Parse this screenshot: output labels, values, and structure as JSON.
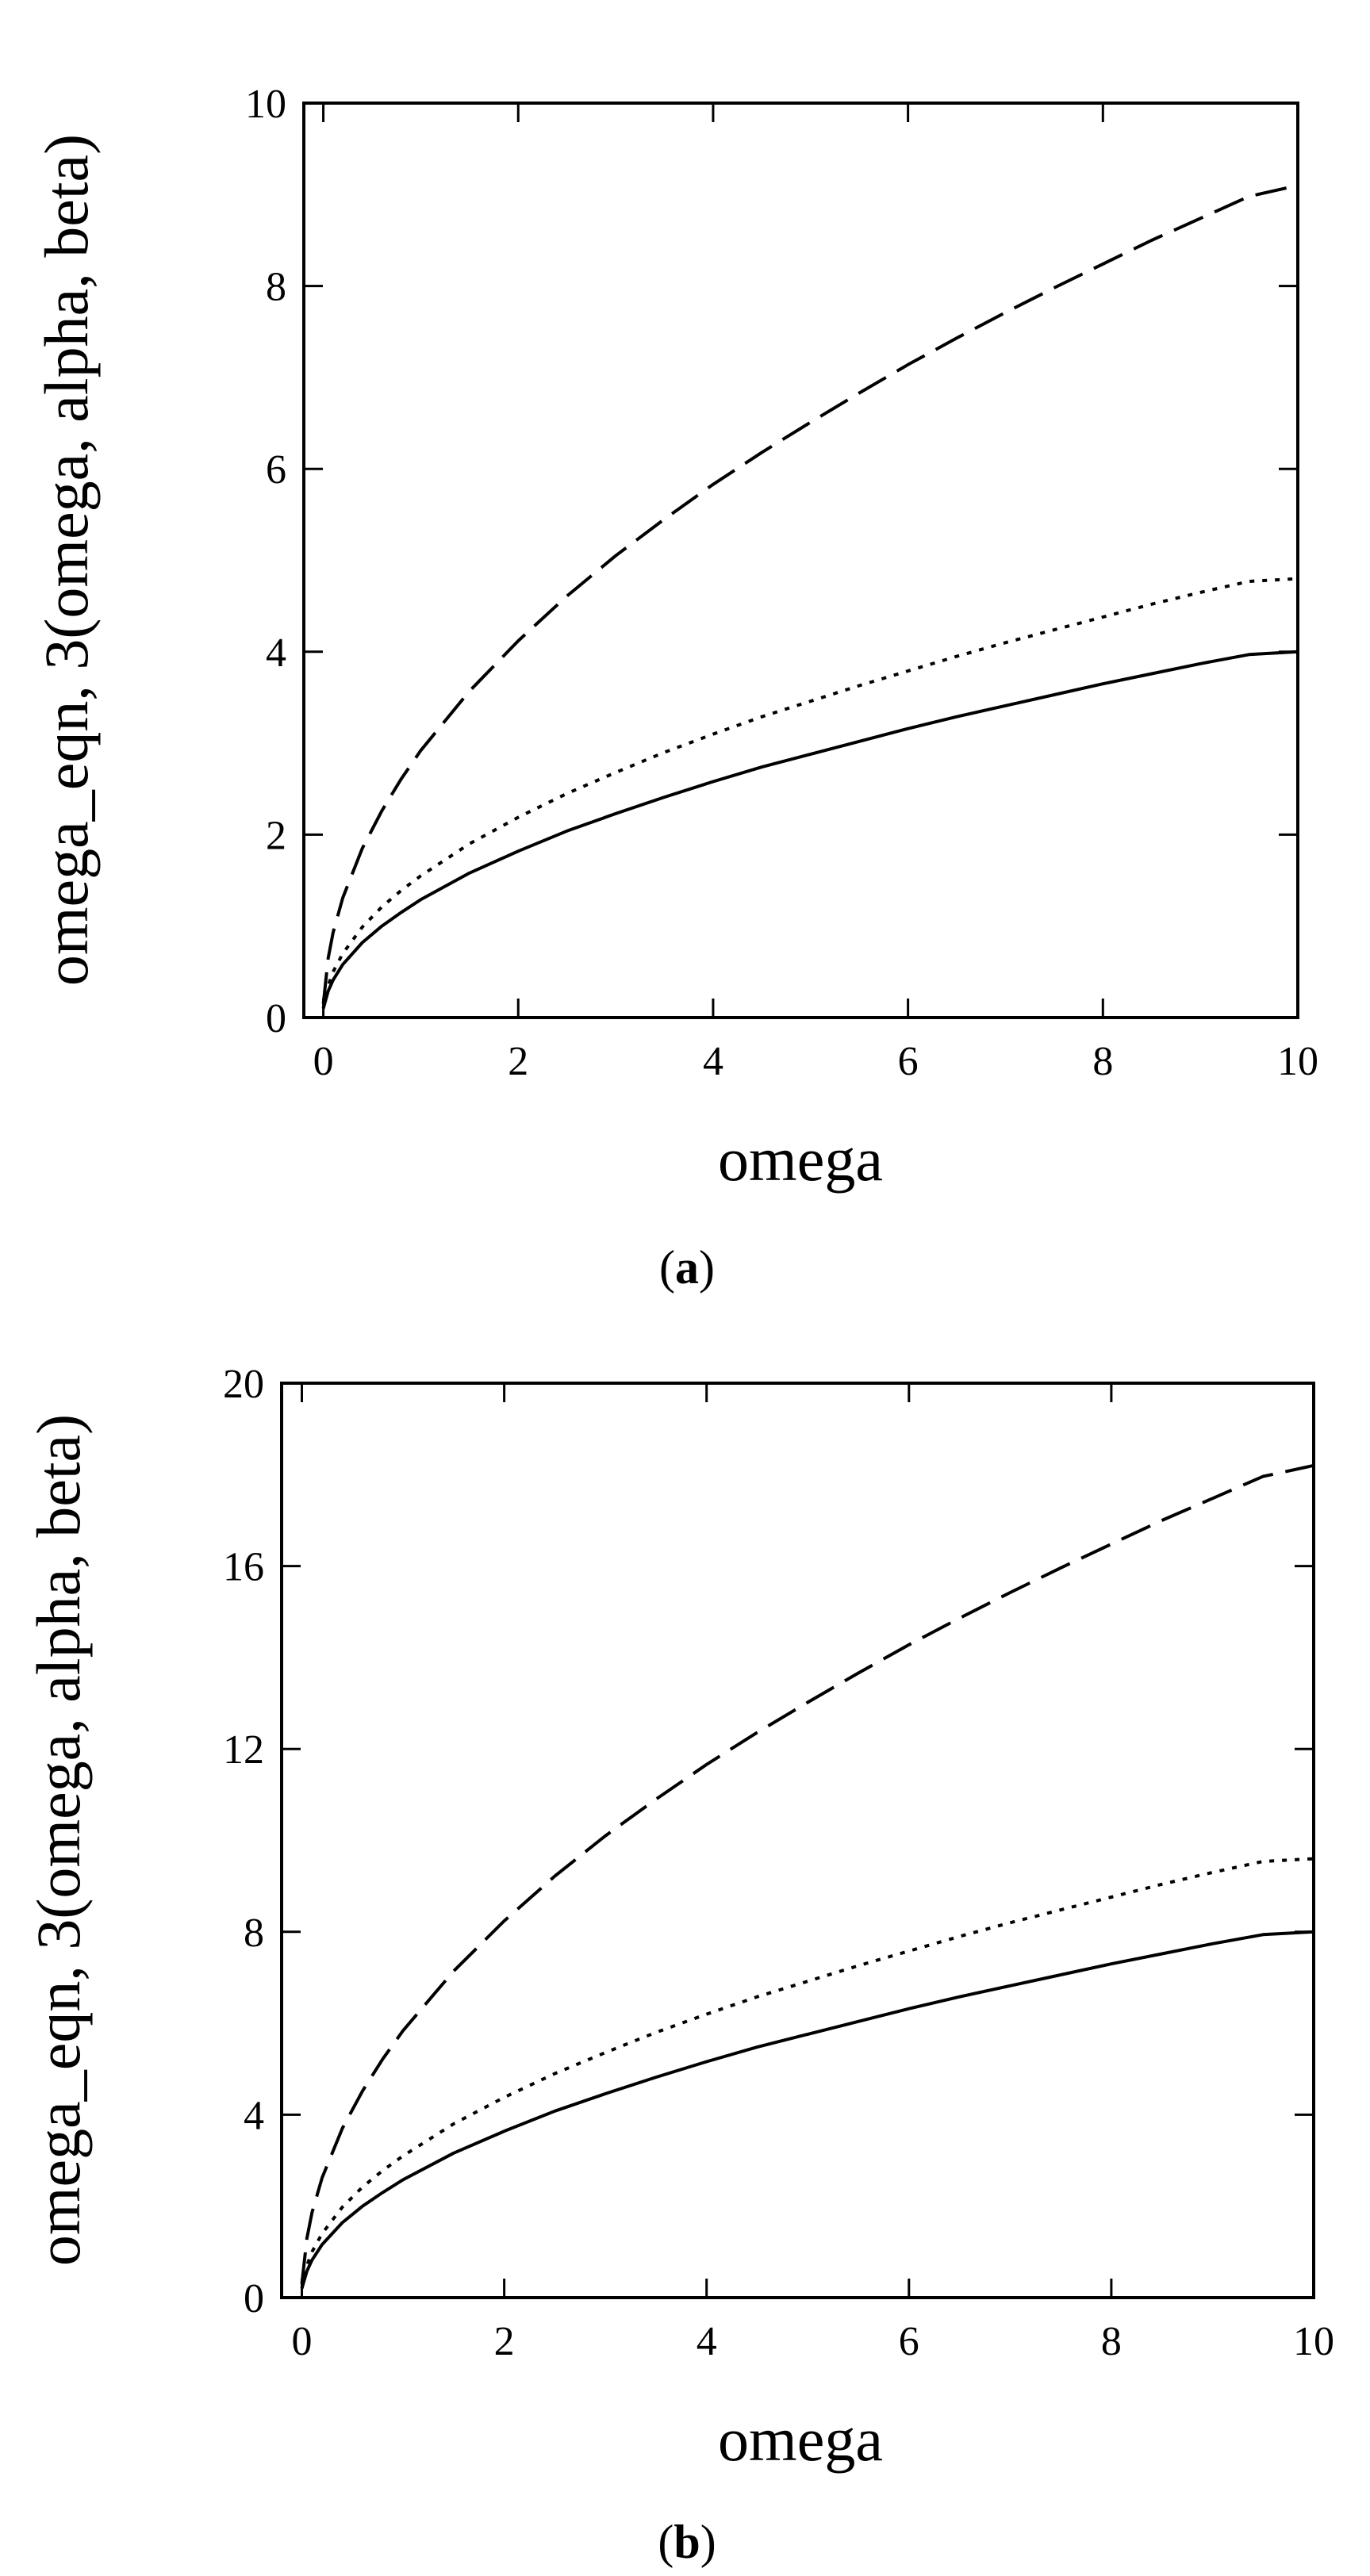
{
  "chart_data": [
    {
      "type": "line",
      "panel_label_open": "(",
      "panel_label_letter": "a",
      "panel_label_close": ")",
      "xlabel": "omega",
      "ylabel": "omega_eqn, 3(omega, alpha, beta)",
      "xlim": [
        -0.2,
        10
      ],
      "ylim": [
        0,
        10
      ],
      "xticks": [
        0,
        2,
        4,
        6,
        8,
        10
      ],
      "yticks": [
        0,
        2,
        4,
        6,
        8,
        10
      ],
      "grid": false,
      "x": [
        0,
        0.05,
        0.1,
        0.2,
        0.4,
        0.6,
        0.8,
        1,
        1.5,
        2,
        2.5,
        3,
        3.5,
        4,
        4.5,
        5,
        5.5,
        6,
        6.5,
        7,
        7.5,
        8,
        8.5,
        9,
        9.5,
        10
      ],
      "series": [
        {
          "name": "solid",
          "style": "solid",
          "values": [
            0.1,
            0.29,
            0.41,
            0.58,
            0.82,
            1.0,
            1.15,
            1.29,
            1.58,
            1.82,
            2.04,
            2.23,
            2.41,
            2.58,
            2.74,
            2.88,
            3.02,
            3.16,
            3.29,
            3.41,
            3.53,
            3.65,
            3.76,
            3.87,
            3.97,
            4.0
          ]
        },
        {
          "name": "dotted",
          "style": "dotted",
          "values": [
            0.1,
            0.35,
            0.5,
            0.7,
            0.99,
            1.21,
            1.39,
            1.55,
            1.9,
            2.19,
            2.45,
            2.68,
            2.9,
            3.1,
            3.29,
            3.46,
            3.63,
            3.79,
            3.95,
            4.1,
            4.24,
            4.38,
            4.52,
            4.65,
            4.77,
            4.8
          ]
        },
        {
          "name": "dashed",
          "style": "dashed",
          "values": [
            0.15,
            0.65,
            0.93,
            1.31,
            1.85,
            2.26,
            2.61,
            2.92,
            3.57,
            4.12,
            4.61,
            5.05,
            5.45,
            5.83,
            6.18,
            6.51,
            6.83,
            7.14,
            7.43,
            7.71,
            7.98,
            8.24,
            8.5,
            8.74,
            8.98,
            9.1
          ]
        }
      ]
    },
    {
      "type": "line",
      "panel_label_open": "(",
      "panel_label_letter": "b",
      "panel_label_close": ")",
      "xlabel": "omega",
      "ylabel": "omega_eqn, 3(omega, alpha, beta)",
      "xlim": [
        -0.2,
        10
      ],
      "ylim": [
        0,
        20
      ],
      "xticks": [
        0,
        2,
        4,
        6,
        8,
        10
      ],
      "yticks": [
        0,
        4,
        8,
        12,
        16,
        20
      ],
      "grid": false,
      "x": [
        0,
        0.05,
        0.1,
        0.2,
        0.4,
        0.6,
        0.8,
        1,
        1.5,
        2,
        2.5,
        3,
        3.5,
        4,
        4.5,
        5,
        5.5,
        6,
        6.5,
        7,
        7.5,
        8,
        8.5,
        9,
        9.5,
        10
      ],
      "series": [
        {
          "name": "solid",
          "style": "solid",
          "values": [
            0.2,
            0.58,
            0.82,
            1.16,
            1.64,
            2.0,
            2.3,
            2.58,
            3.16,
            3.64,
            4.08,
            4.46,
            4.82,
            5.16,
            5.48,
            5.76,
            6.04,
            6.32,
            6.58,
            6.82,
            7.06,
            7.3,
            7.52,
            7.74,
            7.94,
            8.0
          ]
        },
        {
          "name": "dotted",
          "style": "dotted",
          "values": [
            0.2,
            0.7,
            1.0,
            1.4,
            1.98,
            2.42,
            2.78,
            3.1,
            3.8,
            4.38,
            4.9,
            5.36,
            5.8,
            6.2,
            6.58,
            6.92,
            7.26,
            7.58,
            7.9,
            8.2,
            8.48,
            8.76,
            9.04,
            9.3,
            9.54,
            9.6
          ]
        },
        {
          "name": "dashed",
          "style": "dashed",
          "values": [
            0.3,
            1.3,
            1.86,
            2.62,
            3.7,
            4.52,
            5.22,
            5.84,
            7.14,
            8.24,
            9.22,
            10.1,
            10.9,
            11.66,
            12.36,
            13.02,
            13.66,
            14.28,
            14.86,
            15.42,
            15.96,
            16.48,
            17.0,
            17.48,
            17.96,
            18.2
          ]
        }
      ]
    }
  ]
}
